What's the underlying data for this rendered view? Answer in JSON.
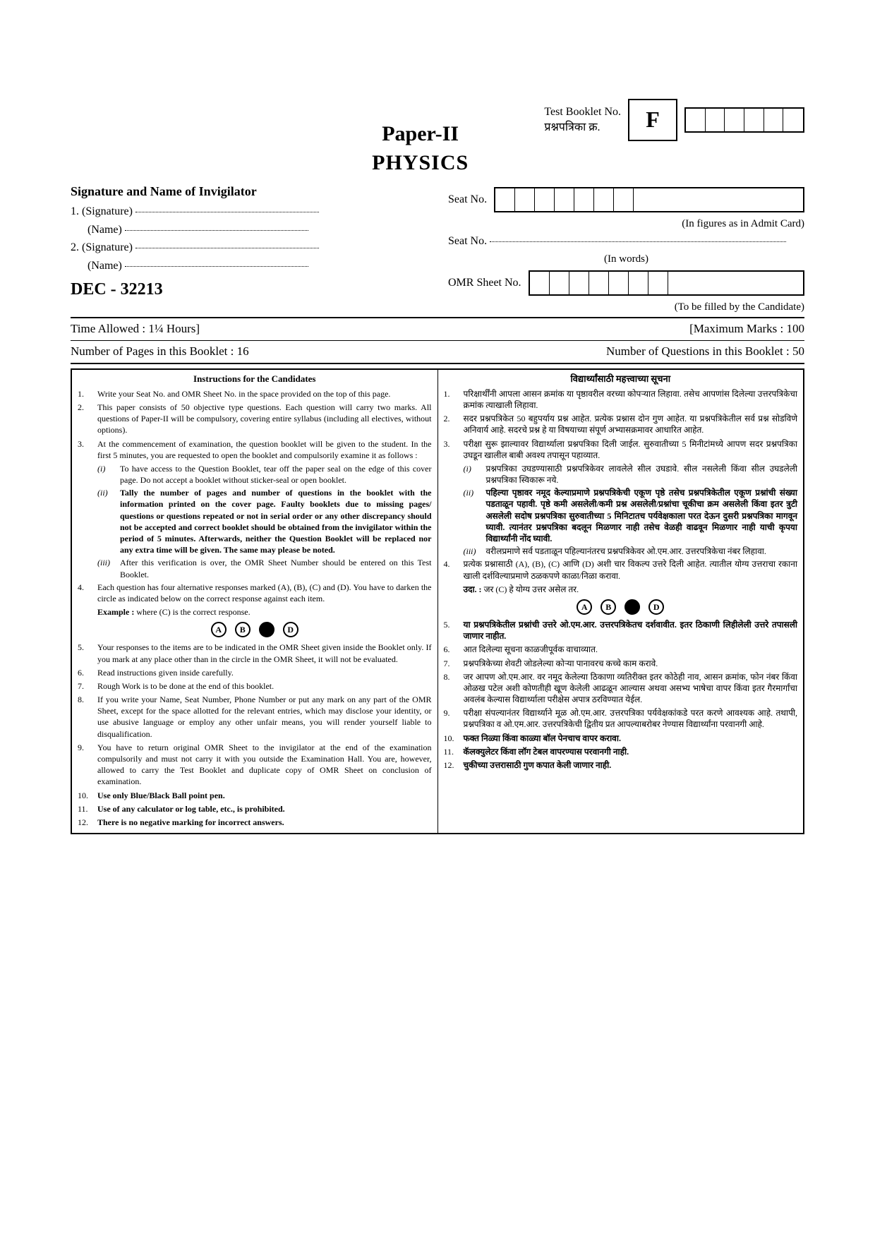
{
  "header": {
    "booklet_label_en": "Test Booklet No.",
    "booklet_label_mr": "प्रश्नपत्रिका क्र.",
    "code_letter": "F",
    "paper_title": "Paper-II",
    "subject": "PHYSICS"
  },
  "sig": {
    "heading": "Signature and Name of Invigilator",
    "sig1": "1. (Signature)",
    "name1": "(Name)",
    "sig2": "2. (Signature)",
    "name2": "(Name)"
  },
  "exam": {
    "code": "DEC - 32213",
    "time_label": "Time Allowed : 1¼ Hours]",
    "marks_label": "[Maximum Marks : 100",
    "pages_label": "Number of Pages in this Booklet : 16",
    "questions_label": "Number of Questions in this Booklet : 50"
  },
  "seat": {
    "seat_no_label": "Seat No.",
    "figures_note": "(In figures as in Admit Card)",
    "seat_no_words_label": "Seat No.",
    "words_note": "(In words)",
    "omr_label": "OMR Sheet No.",
    "candidate_note": "(To be filled by the Candidate)"
  },
  "instr_en": {
    "title": "Instructions for the Candidates",
    "items": [
      "Write your Seat No. and OMR Sheet No. in the space provided on the top of this page.",
      "This paper consists of 50 objective type questions. Each question will carry two marks. All questions of Paper-II will be compulsory, covering entire syllabus (including all electives, without options).",
      "At the commencement of examination, the question booklet will be given to the student. In the first 5 minutes, you are requested to open the booklet and compulsorily examine it as follows :",
      "Each question has four alternative responses marked (A), (B), (C) and (D). You have to darken the circle as indicated below on the correct response against each item.",
      "Your responses to the items are to be indicated in the OMR Sheet given inside the Booklet only. If you mark at any place other than in the circle in the OMR Sheet, it will not be evaluated.",
      "Read instructions given inside carefully.",
      "Rough Work is to be done at the end of this booklet.",
      "If you write your Name, Seat Number, Phone Number or put any mark on any part of the OMR Sheet, except for the space allotted for the relevant entries, which may disclose your identity, or use abusive language or employ any other unfair means, you will render yourself liable to disqualification.",
      "You have to return original OMR Sheet to the invigilator at the end of the examination compulsorily and must not carry it with you outside the Examination Hall. You are, however, allowed to carry the Test Booklet and duplicate copy of OMR Sheet on conclusion of examination.",
      "Use only Blue/Black Ball point pen.",
      "Use of any calculator or log table, etc., is prohibited.",
      "There is no negative marking for incorrect answers."
    ],
    "sub3": [
      "To have access to the Question Booklet, tear off the paper seal on the edge of this cover page. Do not accept a booklet without sticker-seal or open booklet.",
      "Tally the number of pages and number of questions in the booklet with the information printed on the cover page. Faulty booklets due to missing pages/ questions or questions repeated or not in serial order or any other discrepancy should not be accepted and correct booklet should be obtained from the invigilator within the period of 5 minutes. Afterwards, neither the Question Booklet will be replaced nor any extra time will be given. The same may please be noted.",
      "After this verification is over, the OMR Sheet Number should be entered on this Test Booklet."
    ],
    "example_label": "Example : where (C) is the correct response."
  },
  "instr_mr": {
    "title": "विद्यार्थ्यांसाठी महत्त्वाच्या सूचना",
    "items": [
      "परिक्षार्थींनी आपला आसन क्रमांक या पृष्ठावरील वरच्या कोपऱ्यात लिहावा. तसेच आपणांस दिलेल्या उत्तरपत्रिकेचा क्रमांक त्याखाली लिहावा.",
      "सदर प्रश्नपत्रिकेत 50 बहुपर्याय प्रश्न आहेत. प्रत्येक प्रश्नास दोन गुण आहेत. या प्रश्नपत्रिकेतील सर्व प्रश्न सोडविणे अनिवार्य आहे. सदरचे प्रश्न हे या विषयाच्या संपूर्ण अभ्यासक्रमावर आधारित आहेत.",
      "परीक्षा सुरू झाल्यावर विद्यार्थ्याला प्रश्नपत्रिका दिली जाईल. सुरुवातीच्या 5 मिनीटांमध्ये आपण सदर प्रश्नपत्रिका उघडून खालील बाबी अवश्य तपासून पहाव्यात.",
      "प्रत्येक प्रश्नासाठी (A), (B), (C) आणि (D) अशी चार विकल्प उत्तरे दिली आहेत. त्यातील योग्य उत्तराचा रकाना खाली दर्शविल्याप्रमाणे ठळकपणे काळा/निळा करावा.",
      "या प्रश्नपत्रिकेतील प्रश्नांची उत्तरे ओ.एम.आर. उत्तरपत्रिकेतच दर्शवावीत. इतर ठिकाणी लिहीलेली उत्तरे तपासली जाणार नाहीत.",
      "आत दिलेल्या सूचना काळजीपूर्वक वाचाव्यात.",
      "प्रश्नपत्रिकेच्या शेवटी जोडलेल्या कोऱ्या पानावरच कच्चे काम करावे.",
      "जर आपण ओ.एम.आर. वर नमूद केलेल्या ठिकाणा व्यतिरीक्त इतर कोठेही नाव, आसन क्रमांक, फोन नंबर किंवा ओळख पटेल अशी कोणतीही खूण केलेली आढळून आल्यास अथवा असभ्य भाषेचा वापर किंवा इतर गैरमार्गांचा अवलंब केल्यास विद्यार्थ्याला परीक्षेस अपात्र ठरविण्यात येईल.",
      "परीक्षा संपल्यानंतर विद्यार्थ्याने मूळ ओ.एम.आर. उत्तरपत्रिका पर्यवेक्षकांकडे परत करणे आवश्यक आहे. तथापी, प्रश्नपत्रिका व ओ.एम.आर. उत्तरपत्रिकेची द्वितीय प्रत आपल्याबरोबर नेण्यास विद्यार्थ्यांना परवानगी आहे.",
      "फक्त निळ्या किंवा काळ्या बॉल पेनचाच वापर करावा.",
      "कॅलक्युलेटर किंवा लॉग टेबल वापरण्यास परवानगी नाही.",
      "चुकीच्या उत्तरासाठी गुण कपात केली जाणार नाही."
    ],
    "sub3": [
      "प्रश्नपत्रिका उघडण्यासाठी प्रश्नपत्रिकेवर लावलेले सील उघडावे. सील नसलेली किंवा सील उघडलेली प्रश्नपत्रिका स्विकारू नये.",
      "पहिल्या पृष्ठावर नमूद केल्याप्रमाणे प्रश्नपत्रिकेची एकूण पृष्ठे तसेच प्रश्नपत्रिकेतील एकूण प्रश्नांची संख्या पडताळून पहावी. पृष्ठे कमी असलेली/कमी प्रश्न असलेली/प्रश्नांचा चूकीचा क्रम असलेली किंवा इतर त्रुटी असलेली सदोष प्रश्नपत्रिका सुरुवातीच्या 5 मिनिटातच पर्यवेक्षकाला परत देऊन दुसरी प्रश्नपत्रिका मागवून घ्यावी. त्यानंतर प्रश्नपत्रिका बदलून मिळणार नाही तसेच वेळही वाढवून मिळणार नाही याची कृपया विद्यार्थ्यांनी नोंद घ्यावी.",
      "वरीलप्रमाणे सर्व पडताळून पहिल्यानंतरच प्रश्नपत्रिकेवर ओ.एम.आर. उत्तरपत्रिकेचा नंबर लिहावा."
    ],
    "example_label": "उदा. : जर (C) हे योग्य उत्तर असेल तर."
  },
  "bubbles": [
    "A",
    "B",
    "C",
    "D"
  ]
}
